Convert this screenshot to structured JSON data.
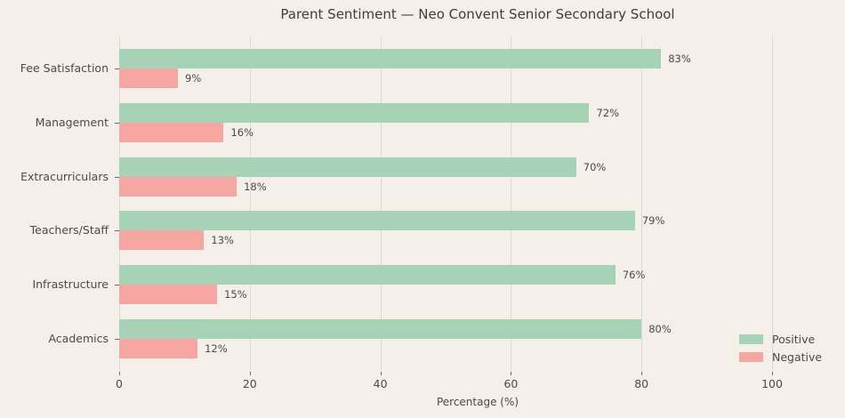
{
  "title": "Parent Sentiment — Neo Convent Senior Secondary School",
  "chart_data": {
    "type": "bar",
    "orientation": "horizontal",
    "title": "Parent Sentiment — Neo Convent Senior Secondary School",
    "categories": [
      "Fee Satisfaction",
      "Management",
      "Extracurriculars",
      "Teachers/Staff",
      "Infrastructure",
      "Academics"
    ],
    "series": [
      {
        "name": "Positive",
        "color": "#a6d3b6",
        "values": [
          83,
          72,
          70,
          79,
          76,
          80
        ]
      },
      {
        "name": "Negative",
        "color": "#f5a6a0",
        "values": [
          9,
          16,
          18,
          13,
          15,
          12
        ]
      }
    ],
    "value_labels": {
      "Positive": [
        "83%",
        "72%",
        "70%",
        "79%",
        "76%",
        "80%"
      ],
      "Negative": [
        "9%",
        "16%",
        "18%",
        "13%",
        "15%",
        "12%"
      ]
    },
    "xlabel": "Percentage (%)",
    "xticks": [
      "0",
      "20",
      "40",
      "60",
      "80",
      "100"
    ],
    "xtick_values": [
      0,
      20,
      40,
      60,
      80,
      100
    ],
    "xlim": [
      0,
      110
    ],
    "grid": "vertical",
    "legend": {
      "position": "lower-right",
      "items": [
        {
          "label": "Positive",
          "color": "#a6d3b6"
        },
        {
          "label": "Negative",
          "color": "#f5a6a0"
        }
      ]
    },
    "colors": {
      "background": "#f4efe9",
      "gridline": "#dcd8d2",
      "text": "#4a4a4a",
      "title_text": "#3d3d3d"
    }
  }
}
